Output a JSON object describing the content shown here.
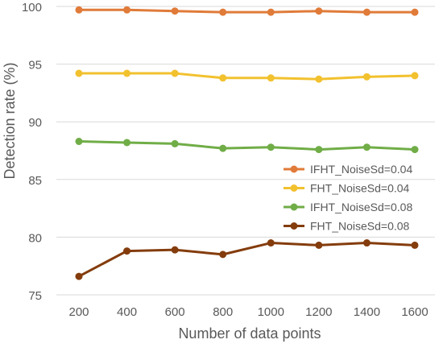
{
  "chart_data": {
    "type": "line",
    "title": "",
    "xlabel": "Number of data points",
    "ylabel": "Detection rate (%)",
    "x": [
      200,
      400,
      600,
      800,
      1000,
      1200,
      1400,
      1600
    ],
    "ylim": [
      75,
      100
    ],
    "yticks": [
      75,
      80,
      85,
      90,
      95,
      100
    ],
    "grid": "horizontal",
    "legend_position": "right",
    "series": [
      {
        "name": "IFHT_NoiseSd=0.04",
        "color": "#E07B39",
        "values": [
          99.7,
          99.7,
          99.6,
          99.5,
          99.5,
          99.6,
          99.5,
          99.5
        ]
      },
      {
        "name": "FHT_NoiseSd=0.04",
        "color": "#F2C12E",
        "values": [
          94.2,
          94.2,
          94.2,
          93.8,
          93.8,
          93.7,
          93.9,
          94.0
        ]
      },
      {
        "name": "IFHT_NoiseSd=0.08",
        "color": "#70AD47",
        "values": [
          88.3,
          88.2,
          88.1,
          87.7,
          87.8,
          87.6,
          87.8,
          87.6
        ]
      },
      {
        "name": "FHT_NoiseSd=0.08",
        "color": "#843C0C",
        "values": [
          76.6,
          78.8,
          78.9,
          78.5,
          79.5,
          79.3,
          79.5,
          79.3
        ]
      }
    ]
  }
}
